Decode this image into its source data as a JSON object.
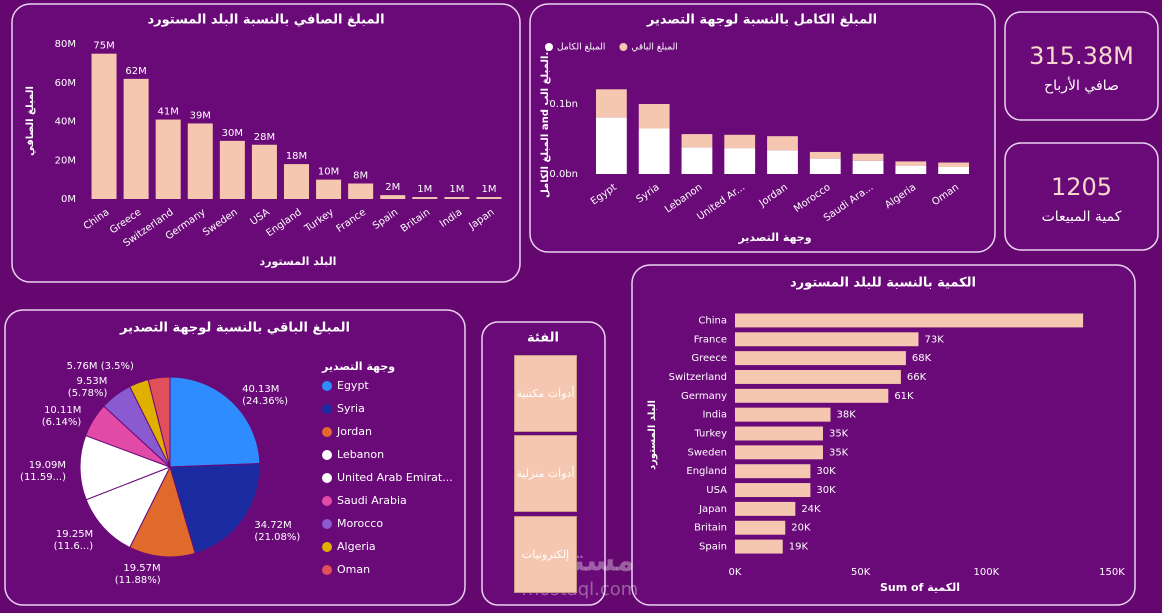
{
  "chart_data": [
    {
      "type": "bar",
      "title": "المبلغ الصافي بالنسبة البلد المستورد",
      "xlabel": "البلد المستورد",
      "ylabel": "المبلغ الصافي",
      "categories": [
        "China",
        "Greece",
        "Switzerland",
        "Germany",
        "Sweden",
        "USA",
        "England",
        "Turkey",
        "France",
        "Spain",
        "Britain",
        "India",
        "Japan"
      ],
      "values": [
        75,
        62,
        41,
        39,
        30,
        28,
        18,
        10,
        8,
        2,
        1,
        1,
        1
      ],
      "value_labels": [
        "75M",
        "62M",
        "41M",
        "39M",
        "30M",
        "28M",
        "18M",
        "10M",
        "8M",
        "2M",
        "1M",
        "1M",
        "1M"
      ],
      "color": "#f5c6b0",
      "ylim": [
        0,
        80
      ],
      "yticks": [
        {
          "value": 0,
          "label": "0M"
        },
        {
          "value": 20,
          "label": "20M"
        },
        {
          "value": 40,
          "label": "40M"
        },
        {
          "value": 60,
          "label": "60M"
        },
        {
          "value": 80,
          "label": "80M"
        }
      ]
    },
    {
      "type": "bar",
      "stacked": true,
      "title": "المبلغ الكامل بالنسبة لوجهة التصدير",
      "xlabel": "وجهة التصدير",
      "ylabel": "المبلغ الكامل and المبلغ الب...",
      "categories": [
        "Egypt",
        "Syria",
        "Lebanon",
        "United Ar...",
        "Jordan",
        "Morocco",
        "Saudi Ara...",
        "Algeria",
        "Oman"
      ],
      "series": [
        {
          "name": "المبلغ الكامل",
          "color": "#ffffff",
          "values": [
            0.081,
            0.065,
            0.038,
            0.037,
            0.034,
            0.022,
            0.019,
            0.012,
            0.01
          ]
        },
        {
          "name": "المبلغ الباقي",
          "color": "#f5c6b0",
          "values": [
            0.04,
            0.035,
            0.019,
            0.019,
            0.02,
            0.0095,
            0.01,
            0.006,
            0.0064
          ]
        }
      ],
      "ylim": [
        0,
        0.15
      ],
      "yticks": [
        {
          "value": 0,
          "label": "0.0bn"
        },
        {
          "value": 0.1,
          "label": "0.1bn"
        }
      ],
      "legend": "top-left"
    },
    {
      "type": "pie",
      "title": "المبلغ الباقي بالنسبة لوجهة التصدير",
      "legend_title": "وجهة التصدير",
      "categories": [
        "Egypt",
        "Syria",
        "Jordan",
        "Lebanon",
        "United Arab Emirat...",
        "Saudi Arabia",
        "Morocco",
        "Algeria",
        "Oman"
      ],
      "values": [
        40.13,
        34.72,
        19.57,
        19.25,
        19.09,
        10.11,
        9.53,
        5.76,
        6.4
      ],
      "value_labels": [
        "40.13M (24.36%)",
        "34.72M (21.08%)",
        "19.57M (11.88%)",
        "19.25M (11.6...)",
        "19.09M (11.59...)",
        "10.11M (6.14%)",
        "9.53M (5.78%)",
        "5.76M (3.5%)",
        null
      ],
      "colors": [
        "#2f8cff",
        "#1a2aa0",
        "#e06a2c",
        "#ffffff",
        "#ffffff",
        "#e24aa8",
        "#8a5ad0",
        "#e0b000",
        "#e0505a"
      ],
      "legend": "right"
    },
    {
      "type": "bar",
      "orientation": "horizontal",
      "title": "الكمية بالنسبة للبلد المستورد",
      "xlabel": "Sum of الكمية",
      "ylabel": "البلد المستورد",
      "categories": [
        "China",
        "France",
        "Greece",
        "Switzerland",
        "Germany",
        "India",
        "Turkey",
        "Sweden",
        "England",
        "USA",
        "Japan",
        "Britain",
        "Spain"
      ],
      "values": [
        138.5,
        73,
        68,
        66,
        61,
        38,
        35,
        35,
        30,
        30,
        24,
        20,
        19
      ],
      "value_labels": [
        null,
        "73K",
        "68K",
        "66K",
        "61K",
        "38K",
        "35K",
        "35K",
        "30K",
        "30K",
        "24K",
        "20K",
        "19K"
      ],
      "color": "#f5c6b0",
      "xlim": [
        0,
        150
      ],
      "xticks": [
        {
          "value": 0,
          "label": "0K"
        },
        {
          "value": 50,
          "label": "50K"
        },
        {
          "value": 100,
          "label": "100K"
        },
        {
          "value": 150,
          "label": "150K"
        }
      ]
    }
  ],
  "kpis": [
    {
      "value": "315.38M",
      "label": "صافي الأرباح"
    },
    {
      "value": "1205",
      "label": "كمية المبيعات"
    }
  ],
  "slicer": {
    "title": "الفئة",
    "items": [
      "أدوات مكتبية",
      "أدوات منزلية",
      "إلكترونيات"
    ]
  },
  "watermark": {
    "name": "مستقل",
    "url": "mostaql.com"
  }
}
